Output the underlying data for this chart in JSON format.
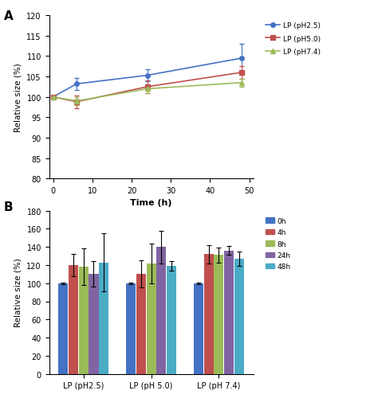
{
  "panel_A": {
    "xlabel": "Time (h)",
    "ylabel": "Relative size (%)",
    "ylim": [
      80,
      120
    ],
    "xlim": [
      -1,
      51
    ],
    "yticks": [
      80,
      85,
      90,
      95,
      100,
      105,
      110,
      115,
      120
    ],
    "xticks": [
      0,
      10,
      20,
      30,
      40,
      50
    ],
    "series": [
      {
        "label": "LP (pH2.5)",
        "color": "#4472C4",
        "marker": "o",
        "x": [
          0,
          6,
          24,
          48
        ],
        "y": [
          100.0,
          103.2,
          105.3,
          109.5
        ],
        "yerr": [
          0.4,
          1.5,
          1.5,
          3.5
        ]
      },
      {
        "label": "LP (pH5.0)",
        "color": "#C0504D",
        "marker": "s",
        "x": [
          0,
          6,
          24,
          48
        ],
        "y": [
          100.0,
          98.8,
          102.5,
          106.0
        ],
        "yerr": [
          0.4,
          1.5,
          1.5,
          1.5
        ]
      },
      {
        "label": "LP (pH7.4)",
        "color": "#9BBB59",
        "marker": "^",
        "x": [
          0,
          6,
          24,
          48
        ],
        "y": [
          100.0,
          99.0,
          102.0,
          103.5
        ],
        "yerr": [
          0.4,
          1.0,
          1.0,
          1.0
        ]
      }
    ]
  },
  "panel_B": {
    "ylabel": "Relative size (%)",
    "ylim": [
      0,
      180
    ],
    "yticks": [
      0,
      20,
      40,
      60,
      80,
      100,
      120,
      140,
      160,
      180
    ],
    "groups": [
      "LP (pH2.5)",
      "LP (pH 5.0)",
      "LP (pH 7.4)"
    ],
    "time_labels": [
      "0h",
      "4h",
      "8h",
      "24h",
      "48h"
    ],
    "bar_colors": [
      "#4472C4",
      "#C0504D",
      "#9BBB59",
      "#8064A2",
      "#4BACC6"
    ],
    "data": [
      [
        100,
        120,
        118,
        110,
        123
      ],
      [
        100,
        110,
        122,
        140,
        119
      ],
      [
        100,
        132,
        131,
        136,
        127
      ]
    ],
    "errors": [
      [
        1,
        12,
        20,
        14,
        32
      ],
      [
        1,
        15,
        22,
        18,
        5
      ],
      [
        1,
        10,
        8,
        5,
        8
      ]
    ]
  }
}
